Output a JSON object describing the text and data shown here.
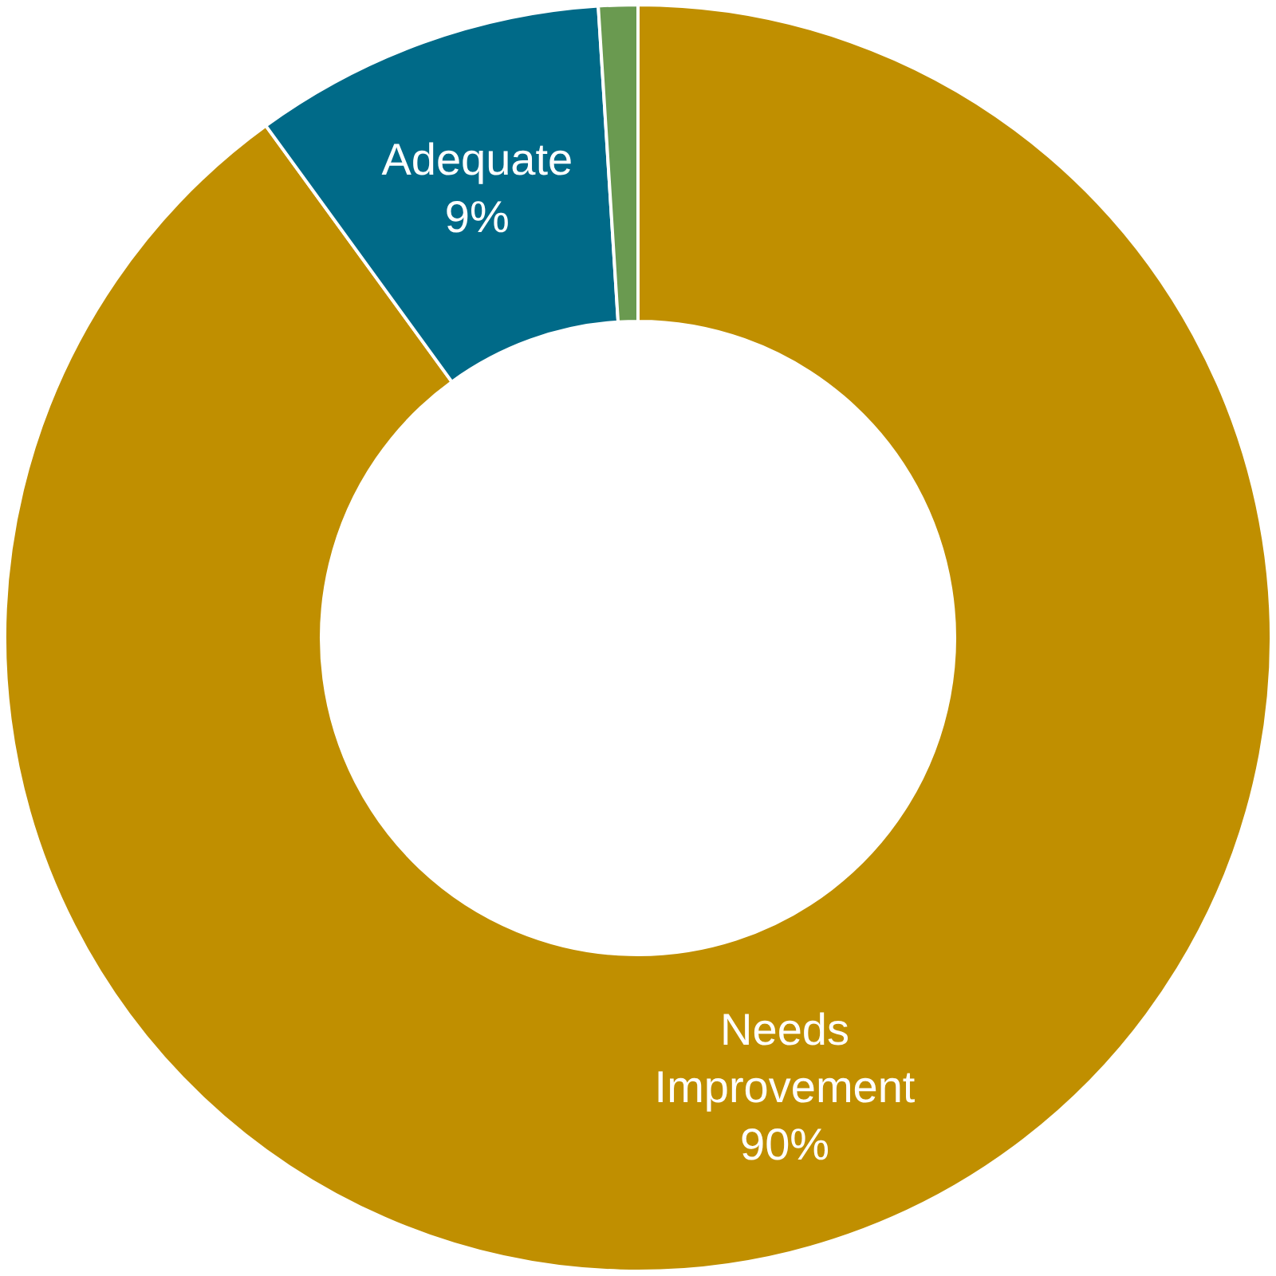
{
  "chart_data": {
    "type": "donut",
    "categories": [
      "Needs Improvement",
      "Adequate",
      null
    ],
    "values": [
      90,
      9,
      1
    ],
    "colors": [
      "#c08f00",
      "#006a88",
      "#6a9a50"
    ],
    "value_labels": [
      "90%",
      "9%",
      null
    ],
    "legend": false
  }
}
